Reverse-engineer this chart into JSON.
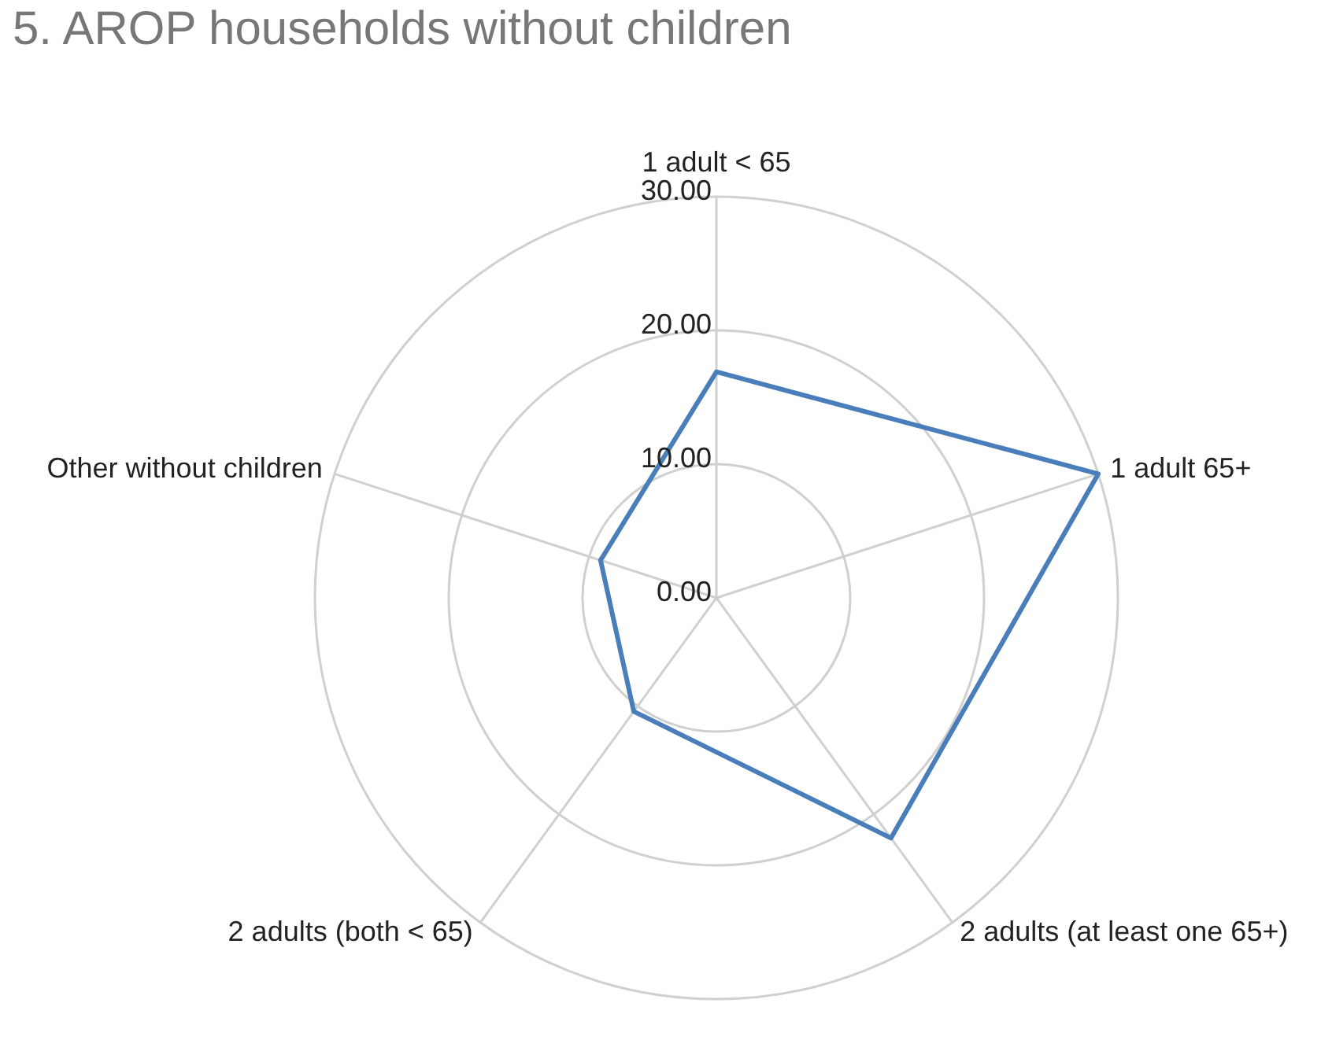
{
  "chart_data": {
    "type": "radar",
    "title": "5. AROP households without children",
    "categories": [
      "1 adult < 65",
      "1 adult 65+",
      "2 adults (at least one 65+)",
      "2 adults (both < 65)",
      "Other without children"
    ],
    "series": [
      {
        "color": "#4a7ebb",
        "values": [
          16.9,
          30,
          22.2,
          10.5,
          9.1
        ]
      }
    ],
    "ylim": [
      0,
      30
    ],
    "yticks": [
      {
        "value": 0,
        "label": "0.00"
      },
      {
        "value": 10,
        "label": "10.00"
      },
      {
        "value": 20,
        "label": "20.00"
      },
      {
        "value": 30,
        "label": "30.00"
      }
    ],
    "grid": true
  }
}
